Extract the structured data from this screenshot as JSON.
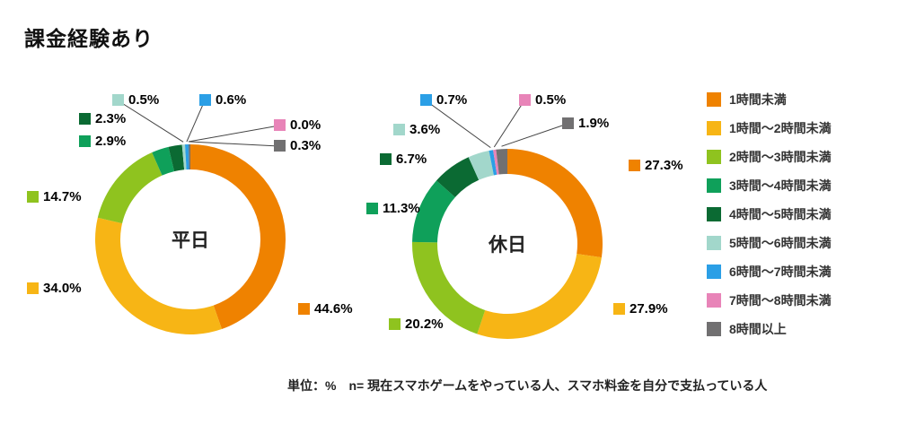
{
  "title": "課金経験あり",
  "footnote": "単位：%　n= 現在スマホゲームをやっている人、スマホ料金を自分で支払っている人",
  "colors": [
    "#ef8200",
    "#f7b515",
    "#8fc31f",
    "#0fa05a",
    "#0b6a33",
    "#a2d7cb",
    "#2b9fe6",
    "#e884b8",
    "#717071"
  ],
  "chart_data": [
    {
      "type": "pie",
      "subtype": "donut",
      "title": "平日",
      "unit": "%",
      "categories": [
        "1時間未満",
        "1時間～2時間未満",
        "2時間～3時間未満",
        "3時間～4時間未満",
        "4時間～5時間未満",
        "5時間～6時間未満",
        "6時間～7時間未満",
        "7時間～8時間未満",
        "8時間以上"
      ],
      "values": [
        44.6,
        34.0,
        14.7,
        2.9,
        2.3,
        0.5,
        0.6,
        0.0,
        0.3
      ]
    },
    {
      "type": "pie",
      "subtype": "donut",
      "title": "休日",
      "unit": "%",
      "categories": [
        "1時間未満",
        "1時間～2時間未満",
        "2時間～3時間未満",
        "3時間～4時間未満",
        "4時間～5時間未満",
        "5時間～6時間未満",
        "6時間～7時間未満",
        "7時間～8時間未満",
        "8時間以上"
      ],
      "values": [
        27.3,
        27.9,
        20.2,
        11.3,
        6.7,
        3.6,
        0.7,
        0.5,
        1.9
      ]
    }
  ],
  "legend": {
    "position": "right",
    "items": [
      "1時間未満",
      "1時間～2時間未満",
      "2時間～3時間未満",
      "3時間～4時間未満",
      "4時間～5時間未満",
      "5時間～6時間未満",
      "6時間～7時間未満",
      "7時間～8時間未満",
      "8時間以上"
    ]
  }
}
